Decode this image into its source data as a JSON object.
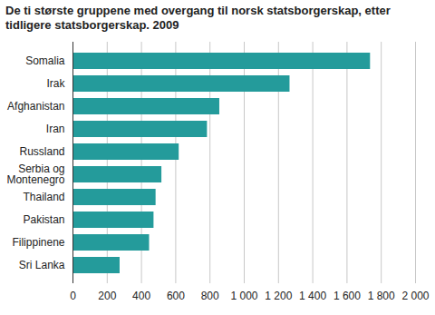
{
  "chart_data": {
    "type": "bar",
    "orientation": "horizontal",
    "title": "De ti største gruppene med overgang til norsk statsborgerskap, etter tidligere statsborgerskap. 2009",
    "categories": [
      "Somalia",
      "Irak",
      "Afghanistan",
      "Iran",
      "Russland",
      "Serbia og Montenegro",
      "Thailand",
      "Pakistan",
      "Filippinene",
      "Sri Lanka"
    ],
    "values": [
      1737,
      1267,
      857,
      785,
      620,
      519,
      485,
      473,
      447,
      275
    ],
    "color": "#249b9b",
    "xlim": [
      0,
      2000
    ],
    "xticks": [
      0,
      200,
      400,
      600,
      800,
      {
        "value": 1000,
        "label": "1 000"
      },
      {
        "value": 1200,
        "label": "1 200"
      },
      {
        "value": 1400,
        "label": "1 400"
      },
      {
        "value": 1600,
        "label": "1 600"
      },
      {
        "value": 1800,
        "label": "1 800"
      },
      {
        "value": 2000,
        "label": "2 000"
      }
    ],
    "grid": true
  }
}
